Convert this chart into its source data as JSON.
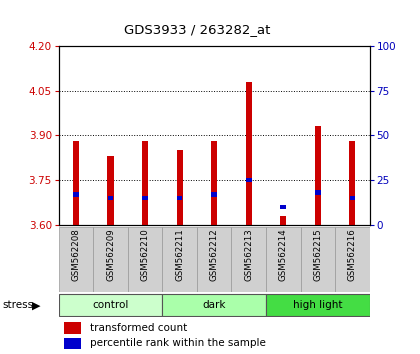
{
  "title": "GDS3933 / 263282_at",
  "samples": [
    "GSM562208",
    "GSM562209",
    "GSM562210",
    "GSM562211",
    "GSM562212",
    "GSM562213",
    "GSM562214",
    "GSM562215",
    "GSM562216"
  ],
  "transformed_counts": [
    3.88,
    3.83,
    3.88,
    3.85,
    3.88,
    4.08,
    3.63,
    3.93,
    3.88
  ],
  "percentile_ranks": [
    17,
    15,
    15,
    15,
    17,
    25,
    10,
    18,
    15
  ],
  "bar_base": 3.6,
  "ylim_left": [
    3.6,
    4.2
  ],
  "ylim_right": [
    0,
    100
  ],
  "yticks_left": [
    3.6,
    3.75,
    3.9,
    4.05,
    4.2
  ],
  "yticks_right": [
    0,
    25,
    50,
    75,
    100
  ],
  "grid_values": [
    3.75,
    3.9,
    4.05
  ],
  "bar_color": "#cc0000",
  "percentile_color": "#0000cc",
  "left_tick_color": "#cc0000",
  "right_tick_color": "#0000bb",
  "groups": [
    {
      "label": "control",
      "samples": [
        0,
        1,
        2
      ],
      "color": "#ccffcc"
    },
    {
      "label": "dark",
      "samples": [
        3,
        4,
        5
      ],
      "color": "#aaffaa"
    },
    {
      "label": "high light",
      "samples": [
        6,
        7,
        8
      ],
      "color": "#44dd44"
    }
  ],
  "stress_label": "stress",
  "legend_items": [
    {
      "color": "#cc0000",
      "label": "transformed count"
    },
    {
      "color": "#0000cc",
      "label": "percentile rank within the sample"
    }
  ],
  "bar_width": 0.18,
  "background_color": "#ffffff",
  "plot_bg_color": "#ffffff",
  "sample_label_bg": "#d0d0d0"
}
